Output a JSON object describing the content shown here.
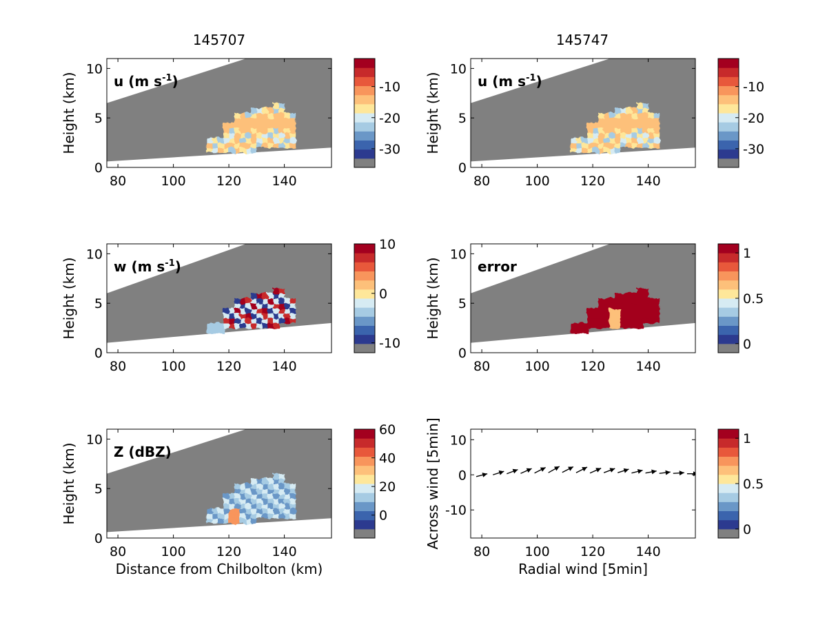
{
  "figure": {
    "titles": [
      "145707",
      "145747"
    ]
  },
  "palette": {
    "colorbar": [
      "#808080",
      "#2c3a8f",
      "#3b64ad",
      "#6a97c7",
      "#a6cbe3",
      "#d6ebf3",
      "#fee79a",
      "#fdc07a",
      "#f8955c",
      "#e8583b",
      "#c72a2b",
      "#a3001f"
    ],
    "background_gray": "#808080",
    "arrow": "#000000"
  },
  "chart_data": [
    {
      "id": "u-145707",
      "type": "heatmap",
      "label": "u (m s",
      "label_sup": "-1",
      "label_close": ")",
      "xlabel": "",
      "ylabel": "Height (km)",
      "xlim": [
        76,
        157
      ],
      "ylim": [
        0,
        11
      ],
      "xticks": [
        "80",
        "100",
        "120",
        "140"
      ],
      "yticks": [
        "0",
        "5",
        "10"
      ],
      "colorbar_ticks": [
        "-10",
        "-20",
        "-30"
      ],
      "colorbar_values": [
        -10,
        -20,
        -30
      ],
      "colorbar_range": [
        -36,
        -1
      ]
    },
    {
      "id": "u-145747",
      "type": "heatmap",
      "label": "u (m s",
      "label_sup": "-1",
      "label_close": ")",
      "xlabel": "",
      "ylabel": "Height (km)",
      "xlim": [
        76,
        157
      ],
      "ylim": [
        0,
        11
      ],
      "xticks": [
        "80",
        "100",
        "120",
        "140"
      ],
      "yticks": [
        "0",
        "5",
        "10"
      ],
      "colorbar_ticks": [
        "-10",
        "-20",
        "-30"
      ],
      "colorbar_values": [
        -10,
        -20,
        -30
      ],
      "colorbar_range": [
        -36,
        -1
      ]
    },
    {
      "id": "w-145707",
      "type": "heatmap",
      "label": "w (m s",
      "label_sup": "-1",
      "label_close": ")",
      "xlabel": "",
      "ylabel": "Height (km)",
      "xlim": [
        76,
        157
      ],
      "ylim": [
        0,
        11
      ],
      "xticks": [
        "80",
        "100",
        "120",
        "140"
      ],
      "yticks": [
        "0",
        "5",
        "10"
      ],
      "colorbar_ticks": [
        "10",
        "0",
        "-10"
      ],
      "colorbar_values": [
        10,
        0,
        -10
      ],
      "colorbar_range": [
        -12,
        10
      ]
    },
    {
      "id": "error-145747",
      "type": "heatmap",
      "label": "error",
      "label_sup": "",
      "label_close": "",
      "xlabel": "",
      "ylabel": "Height (km)",
      "xlim": [
        76,
        157
      ],
      "ylim": [
        0,
        11
      ],
      "xticks": [
        "80",
        "100",
        "120",
        "140"
      ],
      "yticks": [
        "0",
        "5",
        "10"
      ],
      "colorbar_ticks": [
        "1",
        "0.5",
        "0"
      ],
      "colorbar_values": [
        1,
        0.5,
        0
      ],
      "colorbar_range": [
        -0.1,
        1.1
      ]
    },
    {
      "id": "Z-145707",
      "type": "heatmap",
      "label": "Z (dBZ)",
      "label_sup": "",
      "label_close": "",
      "xlabel": "Distance from Chilbolton (km)",
      "ylabel": "Height (km)",
      "xlim": [
        76,
        157
      ],
      "ylim": [
        0,
        11
      ],
      "xticks": [
        "80",
        "100",
        "120",
        "140"
      ],
      "yticks": [
        "0",
        "5",
        "10"
      ],
      "colorbar_ticks": [
        "60",
        "40",
        "20",
        "0"
      ],
      "colorbar_values": [
        60,
        40,
        20,
        0
      ],
      "colorbar_range": [
        -16,
        60
      ]
    },
    {
      "id": "wind-vectors",
      "type": "scatter",
      "label": "",
      "label_sup": "",
      "label_close": "",
      "xlabel": "Radial wind [5min]",
      "ylabel": "Across wind [5min]",
      "xlim": [
        76,
        157
      ],
      "ylim": [
        -18,
        13
      ],
      "xticks": [
        "80",
        "100",
        "120",
        "140"
      ],
      "yticks": [
        "10",
        "0",
        "-10"
      ],
      "colorbar_ticks": [
        "1",
        "0.5",
        "0"
      ],
      "colorbar_values": [
        1,
        0.5,
        0
      ],
      "colorbar_range": [
        -0.1,
        1.1
      ],
      "arrows": [
        {
          "x": 78,
          "y": -0.5,
          "u": 4,
          "v": 0.8
        },
        {
          "x": 84,
          "y": 0,
          "u": 4,
          "v": 1.0
        },
        {
          "x": 89,
          "y": 0.3,
          "u": 4,
          "v": 1.2
        },
        {
          "x": 94,
          "y": 0.4,
          "u": 4,
          "v": 1.4
        },
        {
          "x": 99,
          "y": 0.5,
          "u": 4,
          "v": 1.6
        },
        {
          "x": 104,
          "y": 0.6,
          "u": 4,
          "v": 1.8
        },
        {
          "x": 109,
          "y": 0.7,
          "u": 4,
          "v": 1.6
        },
        {
          "x": 114,
          "y": 0.6,
          "u": 4,
          "v": 1.6
        },
        {
          "x": 119,
          "y": 0.5,
          "u": 4,
          "v": 1.4
        },
        {
          "x": 124,
          "y": 0.6,
          "u": 4,
          "v": 1.2
        },
        {
          "x": 129,
          "y": 0.6,
          "u": 4,
          "v": 1.0
        },
        {
          "x": 134,
          "y": 0.5,
          "u": 4,
          "v": 0.8
        },
        {
          "x": 139,
          "y": 0.5,
          "u": 4,
          "v": 0.6
        },
        {
          "x": 144,
          "y": 0.4,
          "u": 4,
          "v": 0.4
        },
        {
          "x": 149,
          "y": 0.4,
          "u": 4,
          "v": 0.2
        },
        {
          "x": 154,
          "y": 0.3,
          "u": 4,
          "v": 0.0
        }
      ]
    }
  ]
}
